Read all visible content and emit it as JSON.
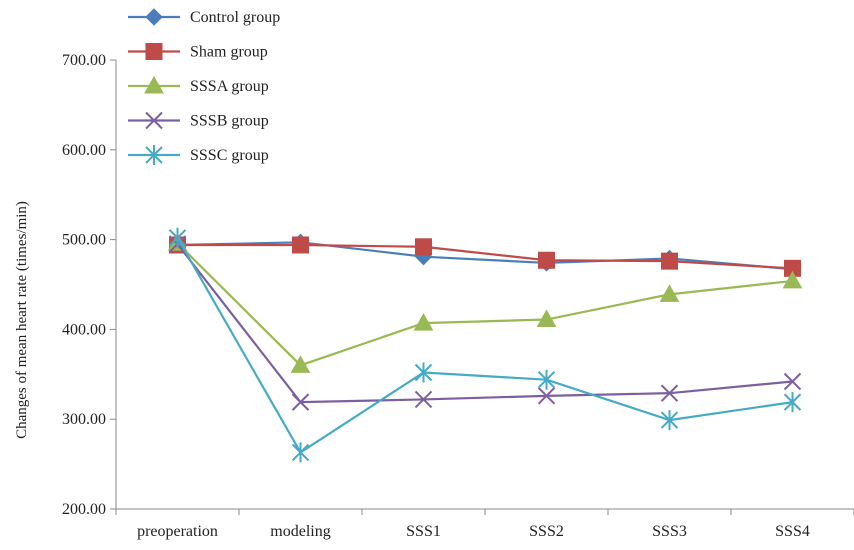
{
  "chart_data": {
    "type": "line",
    "title": "",
    "xlabel": "",
    "ylabel": "Changes of mean heart rate (times/min)",
    "categories": [
      "preoperation",
      "modeling",
      "SSS1",
      "SSS2",
      "SSS3",
      "SSS4"
    ],
    "ylim": [
      200,
      700
    ],
    "yticks": [
      200,
      300,
      400,
      500,
      600,
      700
    ],
    "ytick_labels": [
      "200.00",
      "300.00",
      "400.00",
      "500.00",
      "600.00",
      "700.00"
    ],
    "grid": false,
    "legend_position": "top-left",
    "series": [
      {
        "name": "Control group",
        "marker": "diamond",
        "color": "#4a7ebb",
        "values": [
          494,
          497,
          481,
          474,
          479,
          467
        ]
      },
      {
        "name": "Sham group",
        "marker": "square",
        "color": "#be4b48",
        "values": [
          494,
          494,
          492,
          477,
          476,
          468
        ]
      },
      {
        "name": "SSSA group",
        "marker": "triangle",
        "color": "#98b954",
        "values": [
          496,
          360,
          407,
          411,
          439,
          454
        ]
      },
      {
        "name": "SSSB group",
        "marker": "x",
        "color": "#7d5fa0",
        "values": [
          495,
          319,
          322,
          326,
          329,
          342
        ]
      },
      {
        "name": "SSSC group",
        "marker": "star",
        "color": "#46aac5",
        "values": [
          502,
          263,
          352,
          344,
          299,
          319
        ]
      }
    ]
  }
}
